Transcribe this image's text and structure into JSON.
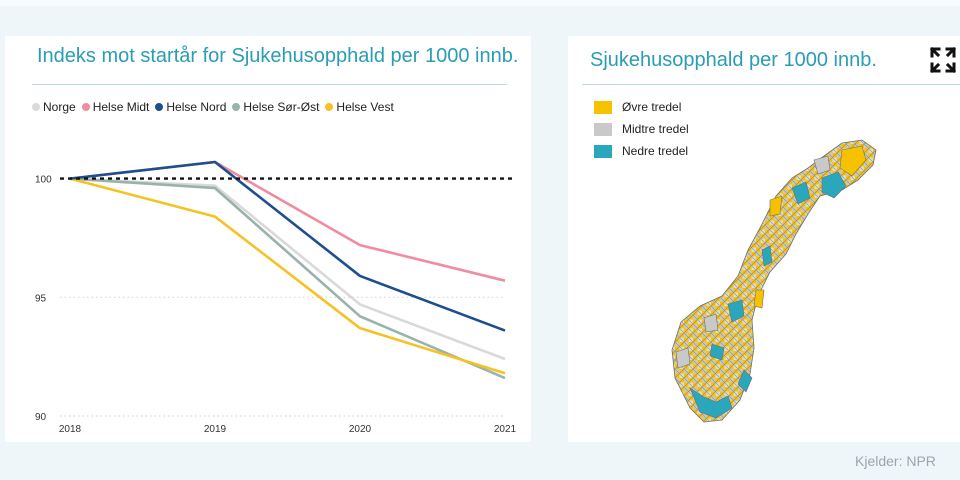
{
  "chart_panel": {
    "title": "Indeks mot startår for Sjukehusopphald per 1000 innb.",
    "legend": [
      {
        "name": "Norge",
        "color": "#d9d9d9"
      },
      {
        "name": "Helse Midt",
        "color": "#f08ca0"
      },
      {
        "name": "Helse Nord",
        "color": "#1d4e8f"
      },
      {
        "name": "Helse Sør-Øst",
        "color": "#99b2ad"
      },
      {
        "name": "Helse Vest",
        "color": "#f6c223"
      }
    ]
  },
  "chart_data": {
    "type": "line",
    "title": "Indeks mot startår for Sjukehusopphald per 1000 innb.",
    "x": [
      "2018",
      "2019",
      "2020",
      "2021"
    ],
    "ylim": [
      90,
      101.5
    ],
    "yticks": [
      "100",
      "95",
      "90"
    ],
    "reference_line": 100,
    "grid": "dotted horizontal",
    "legend_position": "top-left",
    "series": [
      {
        "name": "Norge",
        "color": "#d9d9d9",
        "values": [
          100,
          99.7,
          94.7,
          92.4
        ]
      },
      {
        "name": "Helse Midt",
        "color": "#f08ca0",
        "values": [
          100,
          100.7,
          97.2,
          95.7
        ]
      },
      {
        "name": "Helse Sør-Øst",
        "color": "#99b2ad",
        "values": [
          100,
          99.6,
          94.2,
          91.6
        ]
      },
      {
        "name": "Helse Vest",
        "color": "#f6c223",
        "values": [
          100,
          98.4,
          93.7,
          91.8
        ]
      },
      {
        "name": "Helse Nord",
        "color": "#1d4e8f",
        "values": [
          100,
          100.7,
          95.9,
          93.6
        ]
      }
    ]
  },
  "map_panel": {
    "title": "Sjukehusopphald per 1000 innb.",
    "legend": [
      {
        "label": "Øvre tredel",
        "color": "#f6c200"
      },
      {
        "label": "Midtre tredel",
        "color": "#c9c9c9"
      },
      {
        "label": "Nedre tredel",
        "color": "#2aa6bd"
      }
    ],
    "expand_icon": "expand-icon"
  },
  "footer": {
    "source": "Kjelder: NPR"
  }
}
